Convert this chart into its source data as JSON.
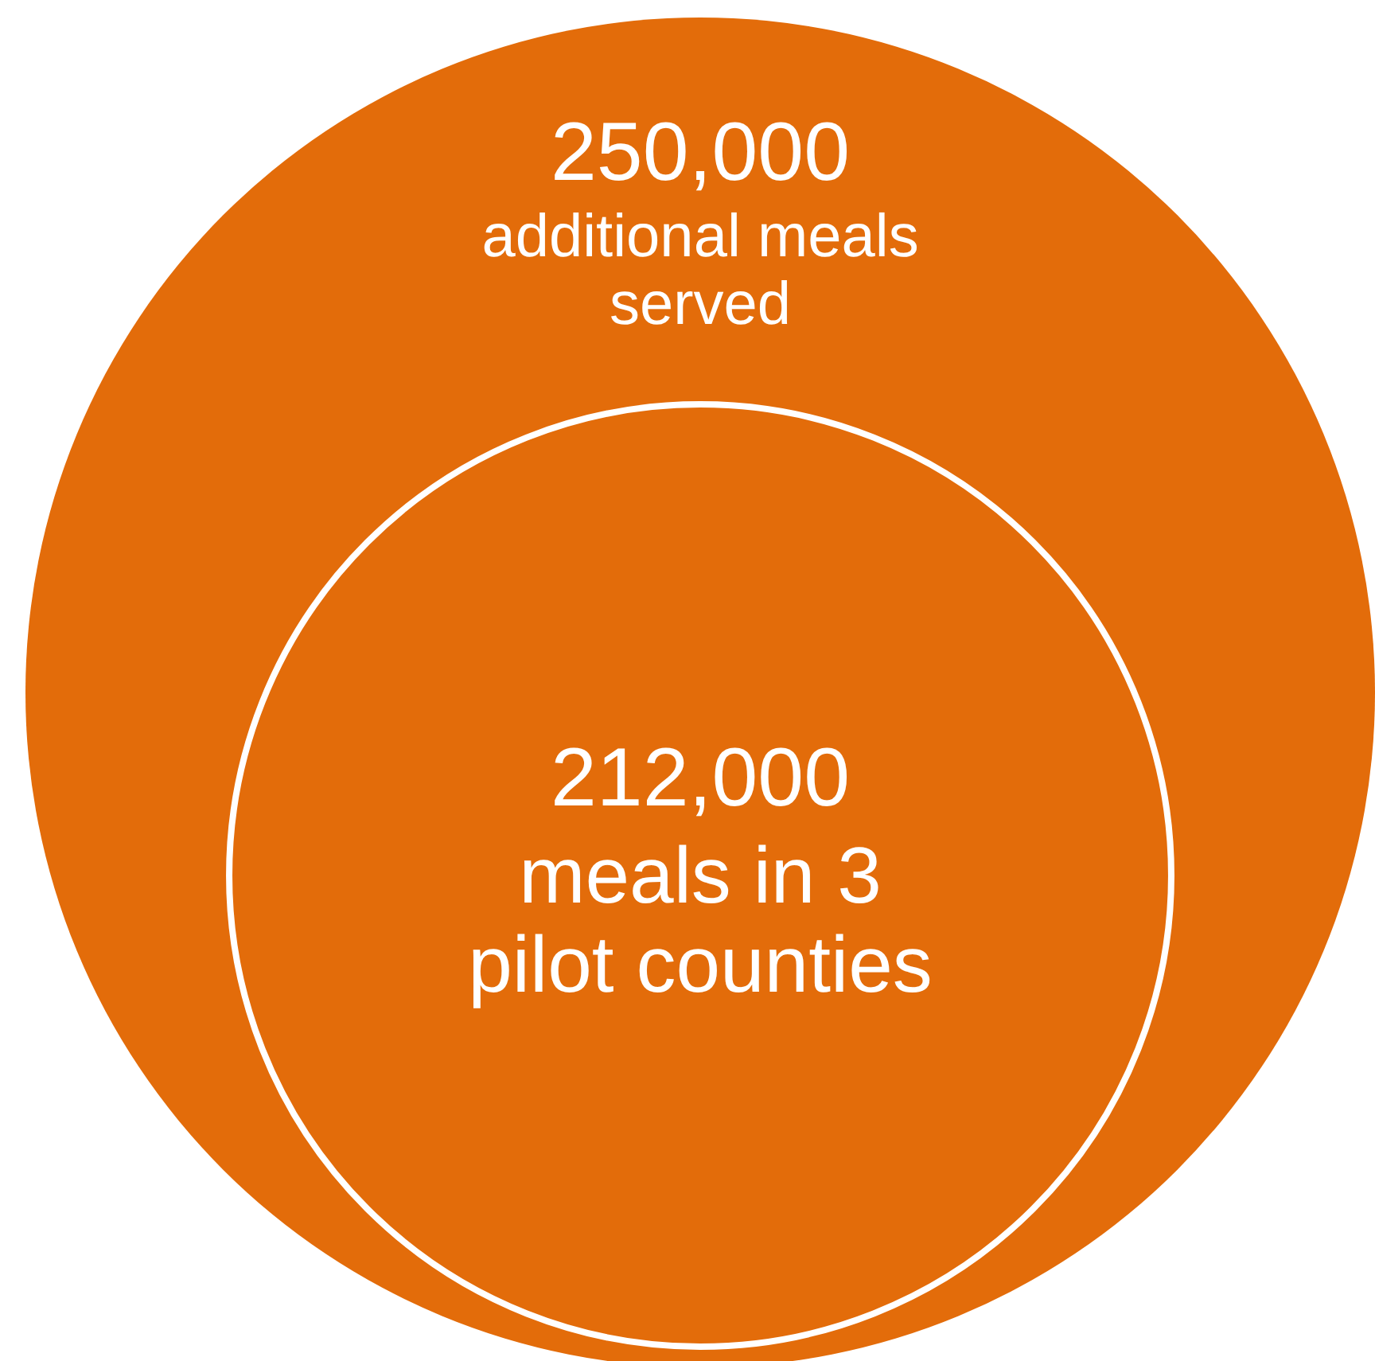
{
  "chart_data": {
    "type": "other",
    "categories": [
      "additional meals\nserved",
      "meals in 3\npilot counties"
    ],
    "values": [
      250000,
      212000
    ],
    "colors": [
      "#e36c0a",
      "#e36c0a"
    ],
    "value_labels": [
      "250,000",
      "212,000"
    ]
  }
}
